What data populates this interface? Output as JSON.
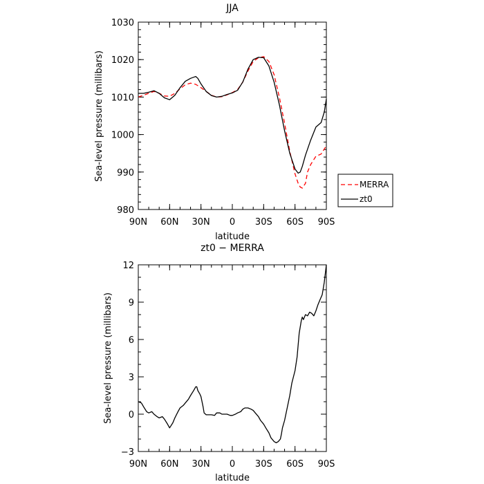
{
  "chart_data": [
    {
      "type": "line",
      "title": "JJA",
      "xlabel": "latitude",
      "ylabel": "Sea-level pressure (millibars)",
      "xlim": [
        90,
        -90
      ],
      "ylim": [
        980,
        1030
      ],
      "xticks": [
        90,
        60,
        30,
        0,
        -30,
        -60,
        -90
      ],
      "xtick_labels": [
        "90N",
        "60N",
        "30N",
        "0",
        "30S",
        "60S",
        "90S"
      ],
      "yticks": [
        980,
        990,
        1000,
        1010,
        1020,
        1030
      ],
      "ytick_labels": [
        "980",
        "990",
        "1000",
        "1010",
        "1020",
        "1030"
      ],
      "legend_position": "right",
      "series": [
        {
          "name": "MERRA",
          "color": "#ff0000",
          "style": "dashed",
          "x": [
            90,
            85,
            80,
            75,
            70,
            65,
            60,
            55,
            50,
            45,
            40,
            35,
            30,
            25,
            20,
            15,
            10,
            5,
            0,
            -5,
            -10,
            -15,
            -20,
            -25,
            -30,
            -35,
            -40,
            -45,
            -50,
            -55,
            -60,
            -63,
            -65,
            -67,
            -70,
            -72,
            -75,
            -80,
            -85,
            -90
          ],
          "y": [
            1010,
            1010.5,
            1011,
            1011.5,
            1011,
            1010.3,
            1010.2,
            1011,
            1012.2,
            1013.3,
            1013.7,
            1013.4,
            1012.5,
            1011.5,
            1010.5,
            1010,
            1010.1,
            1010.6,
            1011.2,
            1012,
            1014,
            1017,
            1019.5,
            1020.5,
            1020.8,
            1019.5,
            1016,
            1010,
            1003,
            995.5,
            989.5,
            987,
            986,
            985.7,
            987,
            990,
            992,
            994.2,
            994.8,
            997
          ]
        },
        {
          "name": "zt0",
          "color": "#000000",
          "style": "solid",
          "x": [
            90,
            85,
            80,
            75,
            70,
            65,
            60,
            55,
            50,
            45,
            40,
            37,
            35,
            33,
            30,
            25,
            20,
            15,
            10,
            5,
            0,
            -5,
            -10,
            -15,
            -20,
            -25,
            -30,
            -35,
            -40,
            -45,
            -50,
            -55,
            -60,
            -63,
            -65,
            -67,
            -70,
            -75,
            -80,
            -85,
            -88,
            -90
          ],
          "y": [
            1011,
            1011,
            1011.3,
            1011.7,
            1011,
            1009.8,
            1009.3,
            1010.5,
            1012.5,
            1014.2,
            1015,
            1015.3,
            1015.5,
            1015,
            1013.5,
            1011.5,
            1010.4,
            1010,
            1010.2,
            1010.7,
            1011.1,
            1011.8,
            1014,
            1017.5,
            1020,
            1020.6,
            1020.5,
            1018.3,
            1014,
            1008,
            1001,
            995,
            990.8,
            989.7,
            990,
            991.5,
            994.5,
            998.5,
            1002,
            1003.2,
            1006,
            1009.5
          ]
        }
      ]
    },
    {
      "type": "line",
      "title": "zt0 − MERRA",
      "xlabel": "latitude",
      "ylabel": "Sea-level pressure (millibars)",
      "xlim": [
        90,
        -90
      ],
      "ylim": [
        -3,
        12
      ],
      "xticks": [
        90,
        60,
        30,
        0,
        -30,
        -60,
        -90
      ],
      "xtick_labels": [
        "90N",
        "60N",
        "30N",
        "0",
        "30S",
        "60S",
        "90S"
      ],
      "yticks": [
        -3,
        0,
        3,
        6,
        9,
        12
      ],
      "ytick_labels": [
        "−3",
        "0",
        "3",
        "6",
        "9",
        "12"
      ],
      "series": [
        {
          "name": "",
          "color": "#000000",
          "style": "solid",
          "x": [
            90,
            87,
            85,
            82,
            80,
            77,
            75,
            72,
            70,
            67,
            65,
            62,
            60,
            57,
            55,
            52,
            50,
            47,
            45,
            42,
            40,
            37,
            35,
            34,
            33,
            31,
            30,
            28,
            27,
            25,
            22,
            20,
            17,
            15,
            12,
            10,
            7,
            5,
            2,
            0,
            -3,
            -5,
            -8,
            -10,
            -12,
            -15,
            -18,
            -20,
            -22,
            -25,
            -27,
            -30,
            -32,
            -35,
            -37,
            -40,
            -42,
            -44,
            -46,
            -47,
            -48,
            -50,
            -52,
            -55,
            -57,
            -60,
            -62,
            -64,
            -66,
            -67,
            -68,
            -70,
            -72,
            -74,
            -76,
            -78,
            -80,
            -82,
            -84,
            -86,
            -88,
            -89,
            -90
          ],
          "y": [
            1.0,
            0.9,
            0.6,
            0.2,
            0.1,
            0.2,
            0.0,
            -0.2,
            -0.3,
            -0.2,
            -0.4,
            -0.8,
            -1.1,
            -0.7,
            -0.3,
            0.2,
            0.5,
            0.7,
            0.9,
            1.2,
            1.5,
            1.9,
            2.2,
            2.2,
            1.9,
            1.6,
            1.4,
            0.6,
            0.1,
            -0.05,
            -0.05,
            -0.05,
            -0.1,
            0.1,
            0.1,
            0.0,
            0.0,
            0.0,
            -0.1,
            -0.1,
            0.0,
            0.1,
            0.2,
            0.4,
            0.5,
            0.5,
            0.4,
            0.3,
            0.1,
            -0.2,
            -0.5,
            -0.8,
            -1.1,
            -1.5,
            -1.9,
            -2.2,
            -2.3,
            -2.2,
            -2.0,
            -1.6,
            -1.1,
            -0.5,
            0.3,
            1.5,
            2.5,
            3.5,
            4.6,
            6.5,
            7.5,
            7.8,
            7.6,
            8.0,
            7.9,
            8.2,
            8.1,
            7.9,
            8.3,
            8.8,
            9.2,
            9.6,
            10.6,
            11.3,
            12.0
          ]
        }
      ]
    }
  ]
}
